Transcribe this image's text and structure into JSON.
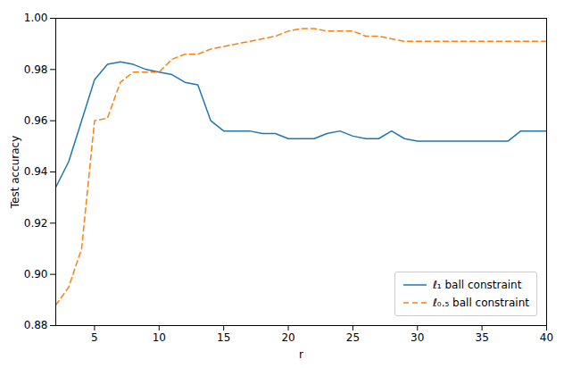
{
  "chart_data": {
    "type": "line",
    "x": [
      2,
      3,
      4,
      5,
      6,
      7,
      8,
      9,
      10,
      11,
      12,
      13,
      14,
      15,
      16,
      17,
      18,
      19,
      20,
      21,
      22,
      23,
      24,
      25,
      26,
      27,
      28,
      29,
      30,
      31,
      32,
      33,
      34,
      35,
      36,
      37,
      38,
      39,
      40
    ],
    "xlabel": "r",
    "ylabel": "Test accuracy",
    "xlim": [
      2,
      40
    ],
    "ylim": [
      0.88,
      1.0
    ],
    "xticks": [
      5,
      10,
      15,
      20,
      25,
      30,
      35,
      40
    ],
    "yticks": [
      0.88,
      {
        "value": 0.9,
        "label": "0.90"
      },
      0.92,
      0.94,
      0.96,
      0.98,
      {
        "value": 1.0,
        "label": "1.00"
      }
    ],
    "grid": false,
    "legend": "lower right",
    "series": [
      {
        "name": "ℓ₁ ball constraint",
        "color": "#1f77b4",
        "line_style": "solid",
        "values": [
          0.934,
          0.944,
          0.96,
          0.976,
          0.982,
          0.983,
          0.982,
          0.98,
          0.979,
          0.978,
          0.975,
          0.974,
          0.96,
          0.956,
          0.956,
          0.956,
          0.955,
          0.955,
          0.953,
          0.953,
          0.953,
          0.955,
          0.956,
          0.954,
          0.953,
          0.953,
          0.956,
          0.953,
          0.952,
          0.952,
          0.952,
          0.952,
          0.952,
          0.952,
          0.952,
          0.952,
          0.956,
          0.956,
          0.956
        ]
      },
      {
        "name": "ℓ₀.₅ ball constraint",
        "color": "#ff7f0e",
        "line_style": "dashed",
        "values": [
          0.888,
          0.895,
          0.91,
          0.96,
          0.961,
          0.975,
          0.979,
          0.979,
          0.979,
          0.984,
          0.986,
          0.986,
          0.988,
          0.989,
          0.99,
          0.991,
          0.992,
          0.993,
          0.995,
          0.996,
          0.996,
          0.995,
          0.995,
          0.995,
          0.993,
          0.993,
          0.992,
          0.991,
          0.991,
          0.991,
          0.991,
          0.991,
          0.991,
          0.991,
          0.991,
          0.991,
          0.991,
          0.991,
          0.991
        ]
      }
    ]
  }
}
